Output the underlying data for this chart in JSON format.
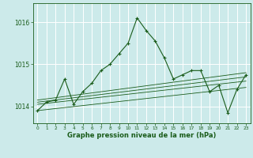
{
  "background_color": "#cceaea",
  "grid_color": "#ffffff",
  "line_color": "#1a5c1a",
  "xlabel": "Graphe pression niveau de la mer (hPa)",
  "xlim": [
    -0.5,
    23.5
  ],
  "ylim": [
    1013.6,
    1016.45
  ],
  "yticks": [
    1014,
    1015,
    1016
  ],
  "xticks": [
    0,
    1,
    2,
    3,
    4,
    5,
    6,
    7,
    8,
    9,
    10,
    11,
    12,
    13,
    14,
    15,
    16,
    17,
    18,
    19,
    20,
    21,
    22,
    23
  ],
  "series": {
    "main": {
      "x": [
        0,
        1,
        2,
        3,
        4,
        5,
        6,
        7,
        8,
        9,
        10,
        11,
        12,
        13,
        14,
        15,
        16,
        17,
        18,
        19,
        20,
        21,
        22,
        23
      ],
      "y": [
        1013.9,
        1014.1,
        1014.15,
        1014.65,
        1014.05,
        1014.35,
        1014.55,
        1014.85,
        1015.0,
        1015.25,
        1015.5,
        1016.1,
        1015.8,
        1015.55,
        1015.15,
        1014.65,
        1014.75,
        1014.85,
        1014.85,
        1014.35,
        1014.5,
        1013.85,
        1014.4,
        1014.75
      ]
    },
    "trend1": {
      "x": [
        0,
        23
      ],
      "y": [
        1013.9,
        1014.45
      ]
    },
    "trend2": {
      "x": [
        0,
        23
      ],
      "y": [
        1014.05,
        1014.6
      ]
    },
    "trend3": {
      "x": [
        0,
        23
      ],
      "y": [
        1014.1,
        1014.7
      ]
    },
    "trend4": {
      "x": [
        0,
        23
      ],
      "y": [
        1014.15,
        1014.8
      ]
    }
  }
}
